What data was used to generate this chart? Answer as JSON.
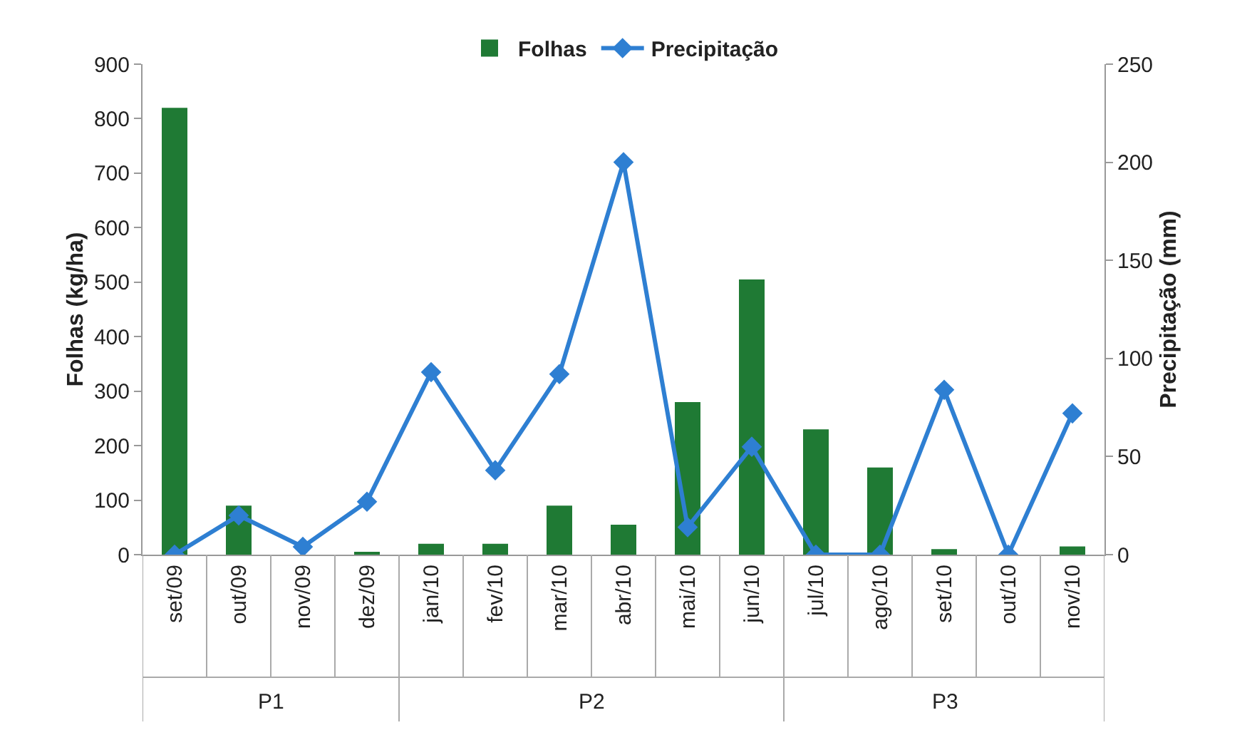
{
  "chart_data": {
    "type": "bar",
    "ylabel": "Folhas (kg/ha)",
    "y2label": "Precipitação (mm)",
    "categories": [
      "set/09",
      "out/09",
      "nov/09",
      "dez/09",
      "jan/10",
      "fev/10",
      "mar/10",
      "abr/10",
      "mai/10",
      "jun/10",
      "jul/10",
      "ago/10",
      "set/10",
      "out/10",
      "nov/10"
    ],
    "series": [
      {
        "name": "Folhas",
        "color": "#1f7a34",
        "values": [
          820,
          90,
          0,
          5,
          20,
          20,
          90,
          55,
          280,
          505,
          230,
          160,
          10,
          0,
          15
        ]
      },
      {
        "name": "Precipitação",
        "type": "line",
        "axis": "y2",
        "color": "#2e7fd2",
        "marker": "diamond",
        "values": [
          0,
          20,
          4,
          27,
          93,
          43,
          92,
          200,
          14,
          55,
          0,
          0,
          84,
          0,
          72
        ]
      }
    ],
    "ylim": [
      0,
      900
    ],
    "yticks": [
      0,
      100,
      200,
      300,
      400,
      500,
      600,
      700,
      800,
      900
    ],
    "y2lim": [
      0,
      250
    ],
    "y2ticks": [
      0,
      50,
      100,
      150,
      200,
      250
    ],
    "annotations": [
      "P1",
      "P2",
      "P3"
    ],
    "grid": false,
    "legend": "top"
  }
}
